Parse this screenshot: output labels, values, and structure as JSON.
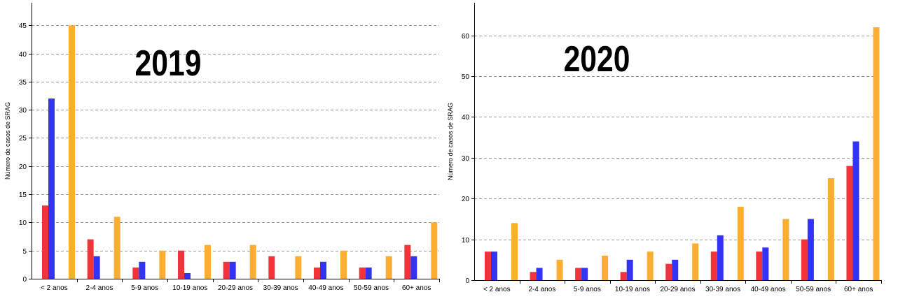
{
  "colors": {
    "red": "#f2343a",
    "blue": "#3333f5",
    "orange": "#fbae31"
  },
  "chart_data": [
    {
      "type": "bar",
      "title": "2019",
      "ylabel": "Número de casos de SRAG",
      "ylim": [
        0,
        49
      ],
      "yticks": [
        0,
        5,
        10,
        15,
        20,
        25,
        30,
        35,
        40,
        45
      ],
      "grid": true,
      "categories": [
        "< 2 anos",
        "2-4 anos",
        "5-9 anos",
        "10-19 anos",
        "20-29 anos",
        "30-39 anos",
        "40-49 anos",
        "50-59 anos",
        "60+ anos"
      ],
      "series": [
        {
          "values": [
            13,
            7,
            2,
            5,
            3,
            4,
            2,
            2,
            6
          ],
          "color": "#f2343a"
        },
        {
          "values": [
            32,
            4,
            3,
            1,
            3,
            0,
            3,
            2,
            4
          ],
          "color": "#3333f5"
        },
        {
          "values": [
            45,
            11,
            5,
            6,
            6,
            4,
            5,
            4,
            10
          ],
          "color": "#fbae31"
        }
      ]
    },
    {
      "type": "bar",
      "title": "2020",
      "ylabel": "Número de casos de SRAG",
      "ylim": [
        0,
        68
      ],
      "yticks": [
        0,
        10,
        20,
        30,
        40,
        50,
        60
      ],
      "grid": true,
      "categories": [
        "< 2 anos",
        "2-4 anos",
        "5-9 anos",
        "10-19 anos",
        "20-29 anos",
        "30-39 anos",
        "40-49 anos",
        "50-59 anos",
        "60+ anos"
      ],
      "series": [
        {
          "values": [
            7,
            2,
            3,
            2,
            4,
            7,
            7,
            10,
            28
          ],
          "color": "#f2343a"
        },
        {
          "values": [
            7,
            3,
            3,
            5,
            5,
            11,
            8,
            15,
            34
          ],
          "color": "#3333f5"
        },
        {
          "values": [
            14,
            5,
            6,
            7,
            9,
            18,
            15,
            25,
            62
          ],
          "color": "#fbae31"
        }
      ]
    }
  ]
}
